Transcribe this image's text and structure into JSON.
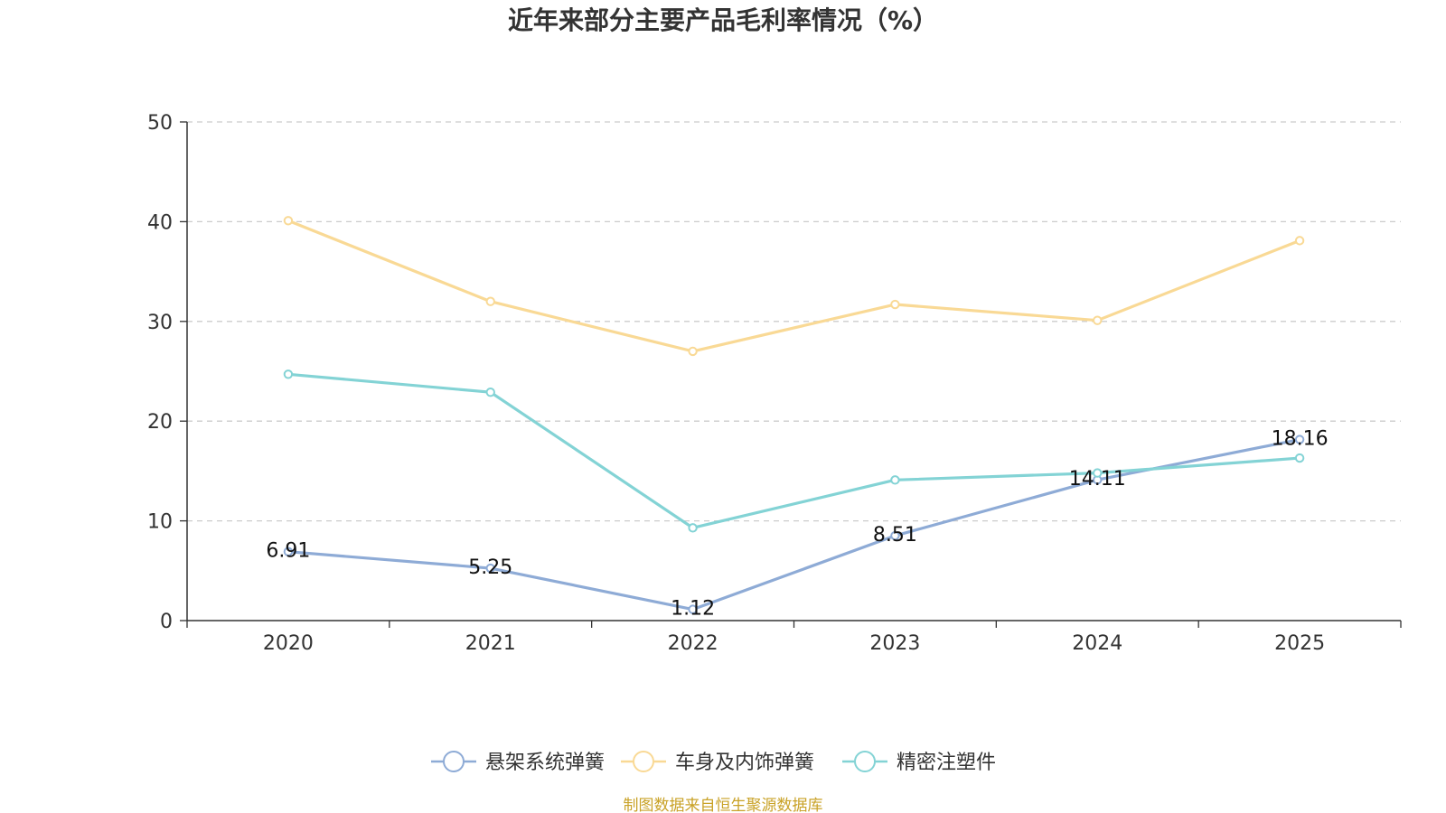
{
  "colors": {
    "series": [
      "#8eabd6",
      "#f9d995",
      "#83d3d5"
    ],
    "grid": "#cccccc",
    "axis": "#333333",
    "source": "#c9a227"
  },
  "chart_data": {
    "type": "line",
    "title": "近年来部分主要产品毛利率情况（%）",
    "categories": [
      "2020",
      "2021",
      "2022",
      "2023",
      "2024",
      "2025"
    ],
    "ylim": [
      0,
      50
    ],
    "yticks": [
      0,
      10,
      20,
      30,
      40,
      50
    ],
    "grid": true,
    "legend_position": "bottom",
    "series": [
      {
        "name": "悬架系统弹簧",
        "values": [
          6.91,
          5.25,
          1.12,
          8.51,
          14.11,
          18.16
        ],
        "labels": [
          "6.91",
          "5.25",
          "1.12",
          "8.51",
          "14.11",
          "18.16"
        ]
      },
      {
        "name": "车身及内饰弹簧",
        "values": [
          40.1,
          32.0,
          27.0,
          31.7,
          30.1,
          38.1
        ]
      },
      {
        "name": "精密注塑件",
        "values": [
          24.7,
          22.9,
          9.3,
          14.1,
          14.8,
          16.3
        ]
      }
    ]
  },
  "footer": {
    "source": "制图数据来自恒生聚源数据库"
  }
}
